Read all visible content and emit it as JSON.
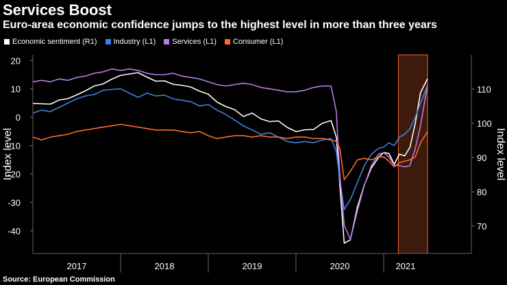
{
  "header": {
    "title": "Services Boost",
    "subtitle": "Euro-area economic confidence jumps to the highest level in more than three years"
  },
  "source": "Source: European Commission",
  "chart_data": {
    "type": "line",
    "title": "Services Boost",
    "subtitle": "Euro-area economic confidence jumps to the highest level in more than three years",
    "ylabel_left": "Index level",
    "ylabel_right": "Index level",
    "left_axis": {
      "range": [
        -48,
        22
      ],
      "ticks": [
        20,
        10,
        0,
        -10,
        -20,
        -30,
        -40
      ]
    },
    "right_axis": {
      "range": [
        62,
        120
      ],
      "ticks": [
        110,
        100,
        90,
        80,
        70
      ]
    },
    "x_range": [
      2016.5,
      2021.5
    ],
    "x_tick_labels": [
      {
        "label": "2017",
        "pos": 2017.0
      },
      {
        "label": "2018",
        "pos": 2018.0
      },
      {
        "label": "2019",
        "pos": 2019.0
      },
      {
        "label": "2020",
        "pos": 2020.0
      },
      {
        "label": "2021",
        "pos": 2020.75
      }
    ],
    "x_separators": [
      2017.5,
      2018.5,
      2019.5,
      2020.5
    ],
    "highlight": {
      "start": 2020.667,
      "end": 2021.0,
      "color": "#3d1a0d",
      "border": "#ff6b2c"
    },
    "series": [
      {
        "name": "Economic sentiment (R1)",
        "axis": "right",
        "color": "#ffffff",
        "points": [
          [
            2016.5,
            105.8
          ],
          [
            2016.6,
            105.7
          ],
          [
            2016.7,
            105.6
          ],
          [
            2016.8,
            106.8
          ],
          [
            2016.9,
            107.2
          ],
          [
            2017.0,
            108.3
          ],
          [
            2017.1,
            109.5
          ],
          [
            2017.2,
            110.9
          ],
          [
            2017.3,
            111.5
          ],
          [
            2017.4,
            112.9
          ],
          [
            2017.5,
            114.0
          ],
          [
            2017.6,
            114.4
          ],
          [
            2017.7,
            114.8
          ],
          [
            2017.8,
            113.5
          ],
          [
            2017.9,
            112.3
          ],
          [
            2018.0,
            112.4
          ],
          [
            2018.1,
            111.4
          ],
          [
            2018.2,
            111.1
          ],
          [
            2018.3,
            110.6
          ],
          [
            2018.4,
            109.4
          ],
          [
            2018.5,
            108.5
          ],
          [
            2018.6,
            106.2
          ],
          [
            2018.7,
            104.9
          ],
          [
            2018.8,
            104.0
          ],
          [
            2018.9,
            102.0
          ],
          [
            2019.0,
            103.0
          ],
          [
            2019.1,
            101.3
          ],
          [
            2019.2,
            100.5
          ],
          [
            2019.3,
            100.7
          ],
          [
            2019.4,
            98.8
          ],
          [
            2019.5,
            97.6
          ],
          [
            2019.6,
            98.1
          ],
          [
            2019.7,
            98.2
          ],
          [
            2019.8,
            100.0
          ],
          [
            2019.9,
            100.8
          ],
          [
            2019.96,
            96.0
          ],
          [
            2020.0,
            82.0
          ],
          [
            2020.05,
            65.0
          ],
          [
            2020.12,
            66.0
          ],
          [
            2020.2,
            75.5
          ],
          [
            2020.28,
            82.0
          ],
          [
            2020.36,
            87.0
          ],
          [
            2020.44,
            90.0
          ],
          [
            2020.5,
            91.5
          ],
          [
            2020.56,
            91.2
          ],
          [
            2020.62,
            88.0
          ],
          [
            2020.68,
            91.0
          ],
          [
            2020.74,
            90.5
          ],
          [
            2020.8,
            93.0
          ],
          [
            2020.86,
            100.0
          ],
          [
            2020.92,
            109.0
          ],
          [
            2021.0,
            113.0
          ]
        ]
      },
      {
        "name": "Industry (L1)",
        "axis": "left",
        "color": "#3f82e0",
        "points": [
          [
            2016.5,
            1.5
          ],
          [
            2016.6,
            2.5
          ],
          [
            2016.7,
            2.0
          ],
          [
            2016.8,
            3.5
          ],
          [
            2016.9,
            5.0
          ],
          [
            2017.0,
            6.5
          ],
          [
            2017.1,
            7.5
          ],
          [
            2017.2,
            8.0
          ],
          [
            2017.3,
            9.5
          ],
          [
            2017.4,
            9.8
          ],
          [
            2017.5,
            10.0
          ],
          [
            2017.6,
            8.5
          ],
          [
            2017.7,
            7.0
          ],
          [
            2017.8,
            8.5
          ],
          [
            2017.9,
            7.5
          ],
          [
            2018.0,
            7.8
          ],
          [
            2018.1,
            6.5
          ],
          [
            2018.2,
            6.0
          ],
          [
            2018.3,
            5.5
          ],
          [
            2018.4,
            4.0
          ],
          [
            2018.5,
            4.5
          ],
          [
            2018.6,
            2.5
          ],
          [
            2018.7,
            1.0
          ],
          [
            2018.8,
            -1.0
          ],
          [
            2018.9,
            -3.0
          ],
          [
            2019.0,
            -4.5
          ],
          [
            2019.1,
            -6.0
          ],
          [
            2019.2,
            -5.5
          ],
          [
            2019.3,
            -7.0
          ],
          [
            2019.4,
            -8.5
          ],
          [
            2019.5,
            -9.0
          ],
          [
            2019.6,
            -8.5
          ],
          [
            2019.7,
            -9.0
          ],
          [
            2019.8,
            -8.0
          ],
          [
            2019.9,
            -7.5
          ],
          [
            2019.96,
            -12.0
          ],
          [
            2020.0,
            -22.0
          ],
          [
            2020.05,
            -32.5
          ],
          [
            2020.12,
            -29.0
          ],
          [
            2020.2,
            -23.0
          ],
          [
            2020.28,
            -17.0
          ],
          [
            2020.36,
            -13.0
          ],
          [
            2020.44,
            -11.0
          ],
          [
            2020.5,
            -10.5
          ],
          [
            2020.56,
            -9.0
          ],
          [
            2020.62,
            -10.0
          ],
          [
            2020.68,
            -7.0
          ],
          [
            2020.74,
            -6.0
          ],
          [
            2020.8,
            -4.0
          ],
          [
            2020.86,
            0.0
          ],
          [
            2020.92,
            5.0
          ],
          [
            2021.0,
            11.0
          ]
        ]
      },
      {
        "name": "Services (L1)",
        "axis": "left",
        "color": "#b87ce8",
        "points": [
          [
            2016.5,
            12.5
          ],
          [
            2016.6,
            13.0
          ],
          [
            2016.7,
            12.5
          ],
          [
            2016.8,
            13.5
          ],
          [
            2016.9,
            13.0
          ],
          [
            2017.0,
            14.0
          ],
          [
            2017.1,
            14.5
          ],
          [
            2017.2,
            15.5
          ],
          [
            2017.3,
            16.0
          ],
          [
            2017.4,
            17.0
          ],
          [
            2017.5,
            16.5
          ],
          [
            2017.6,
            17.0
          ],
          [
            2017.7,
            16.5
          ],
          [
            2017.8,
            15.5
          ],
          [
            2017.9,
            15.0
          ],
          [
            2018.0,
            15.0
          ],
          [
            2018.1,
            15.5
          ],
          [
            2018.2,
            14.5
          ],
          [
            2018.3,
            14.0
          ],
          [
            2018.4,
            13.5
          ],
          [
            2018.5,
            12.5
          ],
          [
            2018.6,
            11.5
          ],
          [
            2018.7,
            11.0
          ],
          [
            2018.8,
            11.5
          ],
          [
            2018.9,
            12.0
          ],
          [
            2019.0,
            11.5
          ],
          [
            2019.1,
            10.5
          ],
          [
            2019.2,
            10.0
          ],
          [
            2019.3,
            9.5
          ],
          [
            2019.4,
            9.0
          ],
          [
            2019.5,
            9.0
          ],
          [
            2019.6,
            9.5
          ],
          [
            2019.7,
            10.5
          ],
          [
            2019.8,
            11.0
          ],
          [
            2019.9,
            11.0
          ],
          [
            2019.96,
            2.0
          ],
          [
            2020.0,
            -20.0
          ],
          [
            2020.05,
            -38.0
          ],
          [
            2020.12,
            -43.0
          ],
          [
            2020.2,
            -33.0
          ],
          [
            2020.28,
            -24.0
          ],
          [
            2020.36,
            -17.0
          ],
          [
            2020.44,
            -13.0
          ],
          [
            2020.5,
            -12.5
          ],
          [
            2020.56,
            -14.0
          ],
          [
            2020.62,
            -17.0
          ],
          [
            2020.68,
            -17.0
          ],
          [
            2020.74,
            -17.5
          ],
          [
            2020.8,
            -17.0
          ],
          [
            2020.86,
            -11.0
          ],
          [
            2020.92,
            -3.0
          ],
          [
            2021.0,
            11.5
          ]
        ]
      },
      {
        "name": "Consumer (L1)",
        "axis": "left",
        "color": "#ff6b2c",
        "points": [
          [
            2016.5,
            -7.0
          ],
          [
            2016.6,
            -8.0
          ],
          [
            2016.7,
            -7.0
          ],
          [
            2016.8,
            -6.5
          ],
          [
            2016.9,
            -6.0
          ],
          [
            2017.0,
            -5.0
          ],
          [
            2017.1,
            -4.5
          ],
          [
            2017.2,
            -4.0
          ],
          [
            2017.3,
            -3.5
          ],
          [
            2017.4,
            -3.0
          ],
          [
            2017.5,
            -2.5
          ],
          [
            2017.6,
            -3.0
          ],
          [
            2017.7,
            -3.5
          ],
          [
            2017.8,
            -4.0
          ],
          [
            2017.9,
            -4.5
          ],
          [
            2018.0,
            -4.5
          ],
          [
            2018.1,
            -4.5
          ],
          [
            2018.2,
            -5.0
          ],
          [
            2018.3,
            -5.5
          ],
          [
            2018.4,
            -5.0
          ],
          [
            2018.5,
            -6.5
          ],
          [
            2018.6,
            -7.5
          ],
          [
            2018.7,
            -7.0
          ],
          [
            2018.8,
            -6.5
          ],
          [
            2018.9,
            -6.5
          ],
          [
            2019.0,
            -7.0
          ],
          [
            2019.1,
            -6.5
          ],
          [
            2019.2,
            -7.0
          ],
          [
            2019.3,
            -7.0
          ],
          [
            2019.4,
            -7.5
          ],
          [
            2019.5,
            -7.0
          ],
          [
            2019.6,
            -7.0
          ],
          [
            2019.7,
            -7.5
          ],
          [
            2019.8,
            -7.5
          ],
          [
            2019.9,
            -8.0
          ],
          [
            2019.96,
            -8.5
          ],
          [
            2020.0,
            -11.0
          ],
          [
            2020.05,
            -22.0
          ],
          [
            2020.12,
            -19.0
          ],
          [
            2020.2,
            -15.0
          ],
          [
            2020.28,
            -14.5
          ],
          [
            2020.36,
            -15.0
          ],
          [
            2020.44,
            -14.0
          ],
          [
            2020.5,
            -14.0
          ],
          [
            2020.56,
            -15.5
          ],
          [
            2020.62,
            -17.5
          ],
          [
            2020.68,
            -16.0
          ],
          [
            2020.74,
            -15.5
          ],
          [
            2020.8,
            -15.0
          ],
          [
            2020.86,
            -14.0
          ],
          [
            2020.92,
            -9.0
          ],
          [
            2021.0,
            -5.0
          ]
        ]
      }
    ]
  }
}
